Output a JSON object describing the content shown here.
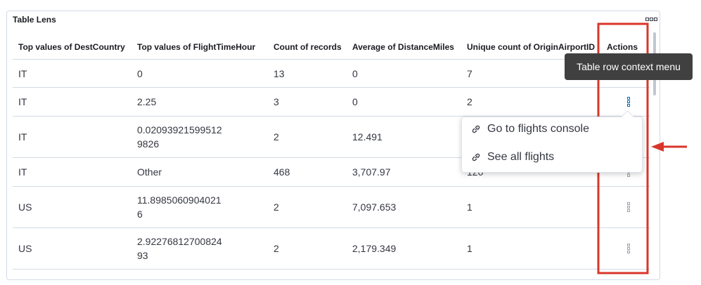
{
  "panel": {
    "title": "Table Lens"
  },
  "table": {
    "headers": [
      "Top values of DestCountry",
      "Top values of FlightTimeHour",
      "Count of records",
      "Average of DistanceMiles",
      "Unique count of OriginAirportID",
      "Actions"
    ],
    "rows": [
      [
        "IT",
        "0",
        "13",
        "0",
        "7"
      ],
      [
        "IT",
        "2.25",
        "3",
        "0",
        "2"
      ],
      [
        "IT",
        "0.020939215995129826",
        "2",
        "12.491"
      ],
      [
        "IT",
        "Other",
        "468",
        "3,707.97",
        "120"
      ],
      [
        "US",
        "11.89850609040216",
        "2",
        "7,097.653",
        "1"
      ],
      [
        "US",
        "2.9227681270082493",
        "2",
        "2,179.349",
        "1"
      ]
    ]
  },
  "tooltip": "Table row context menu",
  "context_menu": {
    "items": [
      "Go to flights console",
      "See all flights"
    ]
  }
}
